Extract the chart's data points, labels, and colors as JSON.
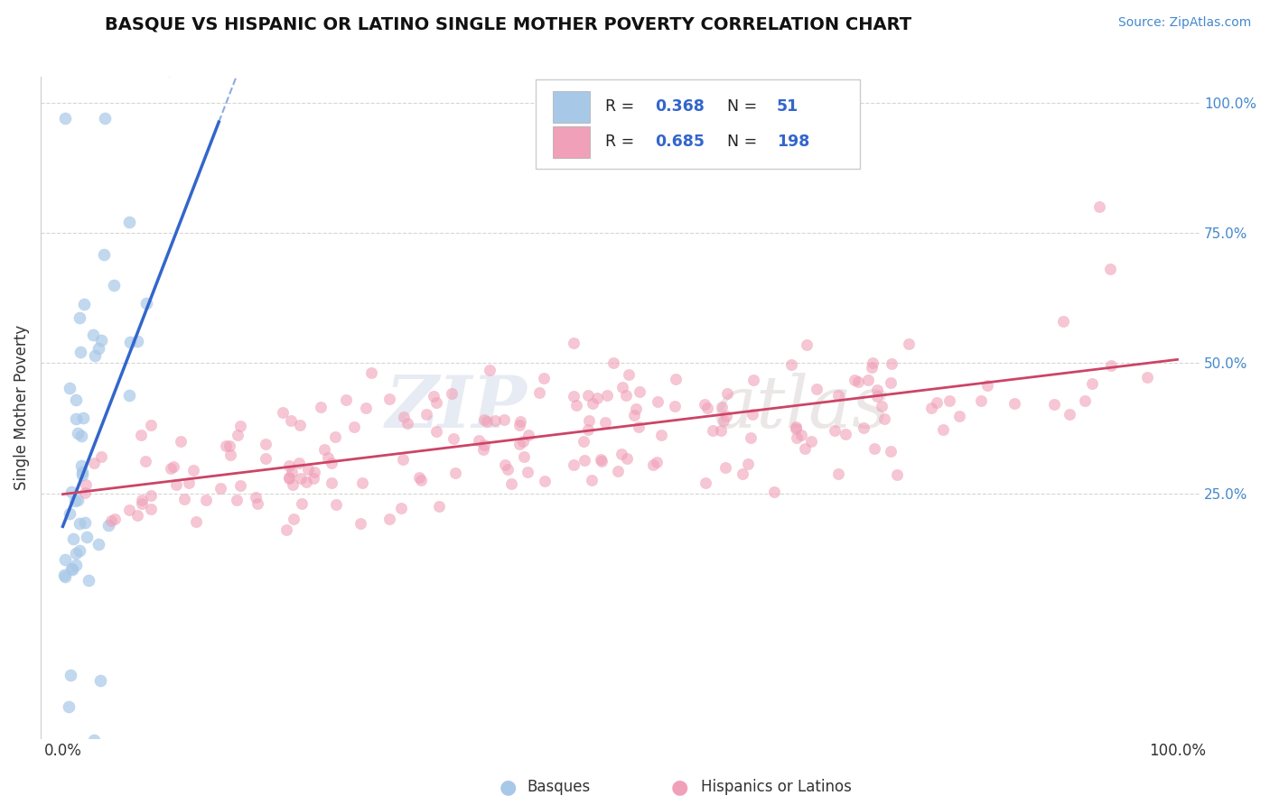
{
  "title": "BASQUE VS HISPANIC OR LATINO SINGLE MOTHER POVERTY CORRELATION CHART",
  "source": "Source: ZipAtlas.com",
  "ylabel": "Single Mother Poverty",
  "basque_R": 0.368,
  "basque_N": 51,
  "hispanic_R": 0.685,
  "hispanic_N": 198,
  "basque_color": "#a8c8e8",
  "hispanic_color": "#f0a0b8",
  "basque_line_color": "#3366cc",
  "hispanic_line_color": "#cc4466",
  "legend_label_basque": "Basques",
  "legend_label_hispanic": "Hispanics or Latinos",
  "watermark_zip": "ZIP",
  "watermark_atlas": "atlas",
  "background_color": "#ffffff",
  "grid_color": "#bbbbbb"
}
